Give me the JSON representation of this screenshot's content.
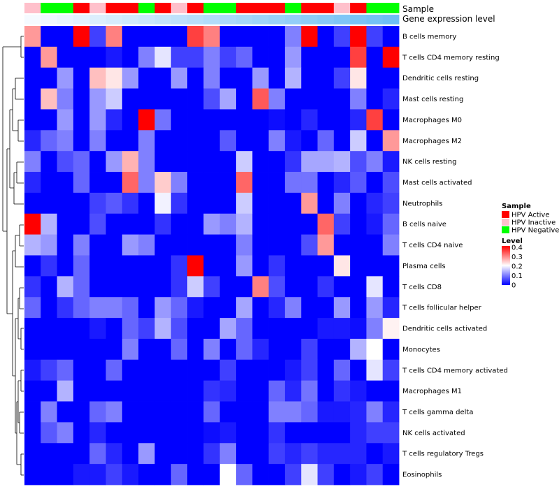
{
  "chart_data": {
    "type": "heatmap",
    "title": "",
    "annotation_labels": {
      "sample": "Sample",
      "gene": "Gene expression level"
    },
    "sample_colors": {
      "HPV Active": "#ff0000",
      "HPV Inactive": "#ffc0cb",
      "HPV Negative": "#00ff00"
    },
    "sample_annotation": [
      "HPV Inactive",
      "HPV Negative",
      "HPV Negative",
      "HPV Active",
      "HPV Inactive",
      "HPV Active",
      "HPV Active",
      "HPV Negative",
      "HPV Active",
      "HPV Inactive",
      "HPV Active",
      "HPV Negative",
      "HPV Negative",
      "HPV Active",
      "HPV Active",
      "HPV Active",
      "HPV Negative",
      "HPV Active",
      "HPV Active",
      "HPV Inactive",
      "HPV Active",
      "HPV Negative",
      "HPV Negative"
    ],
    "rows": [
      "B cells memory",
      "T cells CD4 memory resting",
      "Dendritic cells resting",
      "Mast cells resting",
      "Macrophages M0",
      "Macrophages M2",
      "NK cells resting",
      "Mast cells activated",
      "Neutrophils",
      "B cells naive",
      "T cells CD4 naive",
      "Plasma cells",
      "T cells CD8",
      "T cells follicular helper",
      "Dendritic cells activated",
      "Monocytes",
      "T cells CD4 memory activated",
      "Macrophages M1",
      "T cells gamma delta",
      "NK cells activated",
      "T cells regulatory  Tregs",
      "Eosinophils"
    ],
    "values": [
      [
        0.28,
        0,
        0,
        0.4,
        0.05,
        0.3,
        0,
        0,
        0,
        0,
        0.35,
        0.3,
        0,
        0,
        0,
        0,
        0.1,
        0.4,
        0,
        0.05,
        0.4,
        0.05,
        0
      ],
      [
        0,
        0.28,
        0,
        0,
        0,
        0.02,
        0,
        0.1,
        0.18,
        0.05,
        0.05,
        0.1,
        0.05,
        0.08,
        0,
        0,
        0.12,
        0,
        0,
        0,
        0.35,
        0,
        0.4
      ],
      [
        0,
        0,
        0.12,
        0,
        0.25,
        0.22,
        0.12,
        0,
        0,
        0.12,
        0,
        0.1,
        0,
        0,
        0.12,
        0,
        0.14,
        0,
        0,
        0.05,
        0.22,
        0,
        0
      ],
      [
        0,
        0.25,
        0.1,
        0,
        0.12,
        0.16,
        0,
        0,
        0,
        0,
        0,
        0.06,
        0.13,
        0,
        0.33,
        0.1,
        0,
        0,
        0,
        0,
        0.1,
        0,
        0.03
      ],
      [
        0,
        0,
        0.12,
        0,
        0.12,
        0.03,
        0,
        0.4,
        0.09,
        0,
        0,
        0,
        0,
        0,
        0,
        0.01,
        0,
        0.03,
        0,
        0,
        0.03,
        0.35,
        0
      ],
      [
        0.03,
        0.08,
        0.1,
        0,
        0.1,
        0,
        0,
        0.1,
        0,
        0,
        0,
        0,
        0.07,
        0,
        0,
        0.1,
        0.02,
        0,
        0.08,
        0,
        0.16,
        0,
        0.28
      ],
      [
        0.1,
        0,
        0.06,
        0.08,
        0,
        0.12,
        0.26,
        0.1,
        0,
        0,
        0,
        0,
        0,
        0.16,
        0,
        0,
        0.04,
        0.13,
        0.13,
        0.14,
        0.06,
        0.1,
        0.02
      ],
      [
        0.03,
        0,
        0,
        0.08,
        0,
        0,
        0.32,
        0.1,
        0.24,
        0.1,
        0,
        0,
        0,
        0.32,
        0,
        0,
        0.09,
        0.09,
        0,
        0.03,
        0.07,
        0,
        0.06
      ],
      [
        0,
        0,
        0,
        0,
        0.05,
        0.07,
        0.04,
        0,
        0.19,
        0.04,
        0,
        0,
        0,
        0.16,
        0,
        0,
        0,
        0.28,
        0,
        0.1,
        0,
        0.03,
        0.05
      ],
      [
        0.4,
        0.14,
        0,
        0,
        0.06,
        0,
        0,
        0,
        0.04,
        0,
        0,
        0.12,
        0.1,
        0.14,
        0,
        0,
        0,
        0,
        0.32,
        0.05,
        0,
        0.02,
        0.08
      ],
      [
        0.14,
        0.12,
        0,
        0.1,
        0,
        0,
        0.12,
        0.1,
        0,
        0,
        0,
        0,
        0,
        0.1,
        0,
        0,
        0,
        0.06,
        0.28,
        0,
        0,
        0,
        0.1
      ],
      [
        0,
        0.04,
        0,
        0.08,
        0,
        0,
        0,
        0,
        0,
        0.04,
        0.4,
        0,
        0,
        0.12,
        0,
        0.04,
        0,
        0,
        0,
        0.22,
        0,
        0,
        0
      ],
      [
        0.04,
        0,
        0.14,
        0.08,
        0,
        0,
        0,
        0,
        0,
        0.04,
        0.16,
        0.05,
        0,
        0,
        0.3,
        0.06,
        0,
        0,
        0.04,
        0,
        0,
        0.18,
        0
      ],
      [
        0.08,
        0,
        0.04,
        0.08,
        0.1,
        0.1,
        0.08,
        0,
        0.12,
        0.08,
        0.02,
        0,
        0,
        0.13,
        0,
        0.03,
        0.1,
        0,
        0,
        0.12,
        0,
        0.12,
        0.03
      ],
      [
        0,
        0,
        0,
        0,
        0.02,
        0,
        0.08,
        0.05,
        0.14,
        0.06,
        0,
        0,
        0.13,
        0.08,
        0,
        0,
        0,
        0,
        0.02,
        0.02,
        0.01,
        0.1,
        0.21
      ],
      [
        0,
        0,
        0,
        0,
        0,
        0,
        0.1,
        0,
        0,
        0.08,
        0,
        0.1,
        0,
        0.08,
        0.03,
        0,
        0,
        0.05,
        0,
        0,
        0.14,
        0.2,
        0
      ],
      [
        0.02,
        0.05,
        0.08,
        0,
        0,
        0.08,
        0,
        0,
        0,
        0,
        0,
        0,
        0.05,
        0,
        0,
        0,
        0.02,
        0.05,
        0,
        0.08,
        0,
        0.18,
        0.05
      ],
      [
        0,
        0,
        0.14,
        0,
        0,
        0,
        0,
        0,
        0,
        0,
        0,
        0.04,
        0.03,
        0,
        0,
        0.08,
        0.03,
        0.09,
        0,
        0.04,
        0.02,
        0,
        0
      ],
      [
        0,
        0.1,
        0,
        0,
        0.08,
        0.1,
        0,
        0,
        0,
        0,
        0,
        0.08,
        0,
        0,
        0,
        0.1,
        0.1,
        0.08,
        0.02,
        0.02,
        0.03,
        0.1,
        0.03
      ],
      [
        0,
        0.07,
        0.1,
        0,
        0.03,
        0,
        0,
        0,
        0,
        0,
        0,
        0.01,
        0.02,
        0,
        0,
        0.04,
        0,
        0,
        0,
        0,
        0.03,
        0.05,
        0.05
      ],
      [
        0,
        0,
        0,
        0,
        0.08,
        0.03,
        0,
        0.12,
        0,
        0,
        0,
        0.04,
        0.1,
        0,
        0,
        0.05,
        0.03,
        0.05,
        0.03,
        0.03,
        0.03,
        0,
        0.02
      ],
      [
        0,
        0,
        0,
        0.02,
        0.02,
        0.05,
        0.02,
        0,
        0,
        0.08,
        0,
        0,
        0.2,
        0.08,
        0,
        0,
        0.05,
        0.18,
        0.05,
        0,
        0.02,
        0.05,
        0
      ]
    ],
    "value_range": [
      0,
      0.4
    ],
    "color_scale": [
      "#0000ff",
      "#ffffff",
      "#ff0000"
    ],
    "dendrogram": "left",
    "legend": {
      "sample_title": "Sample",
      "sample_entries": [
        "HPV Active",
        "HPV Inactive",
        "HPV Negative"
      ],
      "level_title": "Level",
      "level_ticks": [
        "0.4",
        "0.3",
        "0.2",
        "0.1",
        "0"
      ],
      "placement": "right"
    }
  }
}
